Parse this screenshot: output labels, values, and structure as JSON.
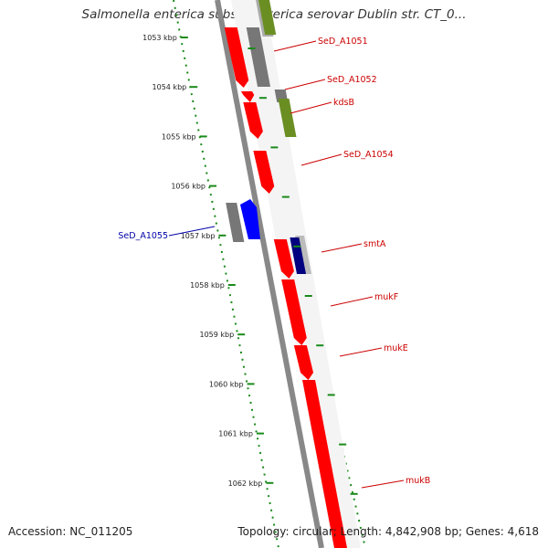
{
  "title": "Salmonella enterica subsp. enterica serovar Dublin str. CT_0...",
  "footer": {
    "accession": "Accession: NC_011205",
    "topology": "Topology: circular; Length: 4,842,908 bp; Genes: 4,618"
  },
  "ticks": [
    "1053 kbp",
    "1054 kbp",
    "1055 kbp",
    "1056 kbp",
    "1057 kbp",
    "1058 kbp",
    "1059 kbp",
    "1060 kbp",
    "1061 kbp",
    "1062 kbp"
  ],
  "genes_right": [
    {
      "name": "SeD_A1051",
      "color": "#cc0000"
    },
    {
      "name": "SeD_A1052",
      "color": "#cc0000"
    },
    {
      "name": "kdsB",
      "color": "#cc0000"
    },
    {
      "name": "SeD_A1054",
      "color": "#cc0000"
    },
    {
      "name": "smtA",
      "color": "#cc0000"
    },
    {
      "name": "mukF",
      "color": "#cc0000"
    },
    {
      "name": "mukE",
      "color": "#cc0000"
    },
    {
      "name": "mukB",
      "color": "#cc0000"
    }
  ],
  "genes_left": [
    {
      "name": "SeD_A1055",
      "color": "#0000aa"
    }
  ],
  "colors": {
    "cds_forward": "#ff0000",
    "cds_reverse": "#0000ff",
    "gc_gray": "#777777",
    "cog_olive": "#6b8e23",
    "cog_navy": "#000080",
    "cog_pale_yellow": "#eee8a0",
    "backbone": "#888888",
    "tick_green": "#1a8a1a"
  }
}
